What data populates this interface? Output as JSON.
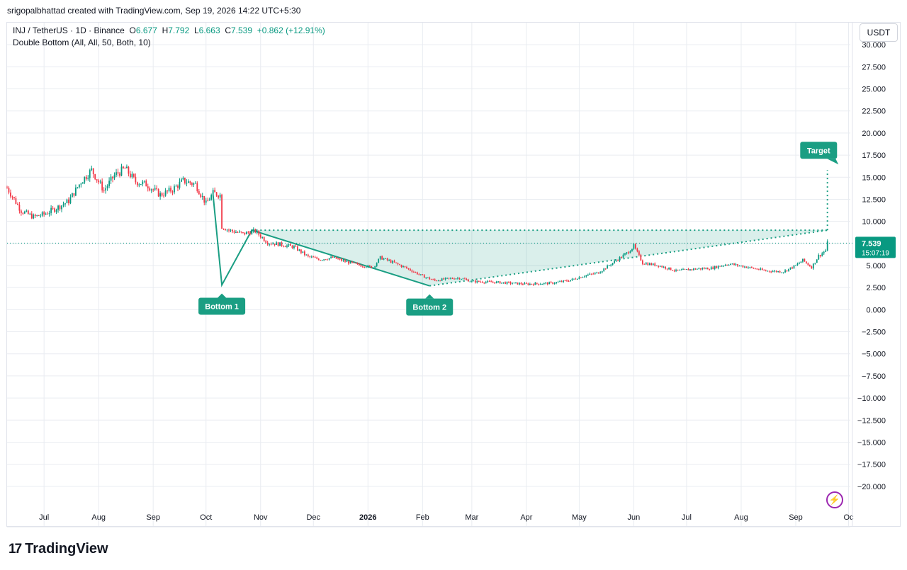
{
  "header": {
    "credit": "srigopalbhattad created with TradingView.com, Sep 19, 2026 14:22 UTC+5:30"
  },
  "legend": {
    "symbol": "INJ / TetherUS · 1D · Binance",
    "o_label": "O",
    "o_value": "6.677",
    "h_label": "H",
    "h_value": "7.792",
    "l_label": "L",
    "l_value": "6.663",
    "c_label": "C",
    "c_value": "7.539",
    "change": "+0.862 (+12.91%)",
    "indicator": "Double Bottom (All, All, 50, Both, 10)"
  },
  "currency_button": "USDT",
  "price_badge": {
    "price": "7.539",
    "countdown": "15:07:19"
  },
  "footer": {
    "brand": "TradingView"
  },
  "colors": {
    "up": "#089981",
    "down": "#f23645",
    "pattern": "#1a9e83",
    "grid": "#e9ecf1",
    "accent": "#9c27b0"
  },
  "chart_data": {
    "type": "candlestick",
    "title": "INJ / TetherUS · 1D · Binance",
    "ylim": [
      -22.5,
      32.5
    ],
    "yticks": [
      "30.000",
      "27.500",
      "25.000",
      "22.500",
      "20.000",
      "17.500",
      "15.000",
      "12.500",
      "10.000",
      "7.500",
      "5.000",
      "2.500",
      "0.000",
      "−2.500",
      "−5.000",
      "−7.500",
      "−10.000",
      "−12.500",
      "−15.000",
      "−17.500",
      "−20.000"
    ],
    "x_tick_labels": [
      "Jul",
      "Aug",
      "Sep",
      "Oct",
      "Nov",
      "Dec",
      "2026",
      "Feb",
      "Mar",
      "Apr",
      "May",
      "Jun",
      "Jul",
      "Aug",
      "Sep",
      "Oc"
    ],
    "x_tick_dates": [
      "2025-07-01",
      "2025-08-01",
      "2025-09-01",
      "2025-10-01",
      "2025-11-01",
      "2025-12-01",
      "2026-01-01",
      "2026-02-01",
      "2026-03-01",
      "2026-04-01",
      "2026-05-01",
      "2026-06-01",
      "2026-07-01",
      "2026-08-01",
      "2026-09-01",
      "2026-10-01"
    ],
    "x_range": [
      "2025-06-10",
      "2026-10-02"
    ],
    "last_close": 7.539,
    "close_path": [
      [
        "2025-06-10",
        13.8
      ],
      [
        "2025-06-18",
        11.2
      ],
      [
        "2025-06-25",
        10.5
      ],
      [
        "2025-07-01",
        10.8
      ],
      [
        "2025-07-08",
        11.5
      ],
      [
        "2025-07-15",
        12.3
      ],
      [
        "2025-07-22",
        14.5
      ],
      [
        "2025-07-28",
        15.8
      ],
      [
        "2025-08-04",
        13.5
      ],
      [
        "2025-08-10",
        15.2
      ],
      [
        "2025-08-16",
        16.0
      ],
      [
        "2025-08-22",
        14.5
      ],
      [
        "2025-08-28",
        14.2
      ],
      [
        "2025-09-05",
        13.0
      ],
      [
        "2025-09-12",
        13.6
      ],
      [
        "2025-09-18",
        14.6
      ],
      [
        "2025-09-25",
        14.2
      ],
      [
        "2025-10-01",
        12.0
      ],
      [
        "2025-10-05",
        13.2
      ],
      [
        "2025-10-09",
        13.0
      ],
      [
        "2025-10-10",
        9.4
      ],
      [
        "2025-10-14",
        9.0
      ],
      [
        "2025-10-22",
        8.6
      ],
      [
        "2025-10-29",
        8.9
      ],
      [
        "2025-11-05",
        7.6
      ],
      [
        "2025-11-12",
        7.4
      ],
      [
        "2025-11-20",
        7.1
      ],
      [
        "2025-11-28",
        6.0
      ],
      [
        "2025-12-05",
        5.7
      ],
      [
        "2025-12-12",
        5.9
      ],
      [
        "2025-12-20",
        5.4
      ],
      [
        "2025-12-28",
        5.0
      ],
      [
        "2026-01-04",
        4.8
      ],
      [
        "2026-01-08",
        5.9
      ],
      [
        "2026-01-16",
        5.3
      ],
      [
        "2026-01-24",
        4.6
      ],
      [
        "2026-02-01",
        3.8
      ],
      [
        "2026-02-08",
        3.3
      ],
      [
        "2026-02-15",
        3.5
      ],
      [
        "2026-02-22",
        3.6
      ],
      [
        "2026-03-01",
        3.2
      ],
      [
        "2026-03-15",
        3.1
      ],
      [
        "2026-04-01",
        2.9
      ],
      [
        "2026-04-15",
        3.0
      ],
      [
        "2026-04-25",
        3.3
      ],
      [
        "2026-05-05",
        3.9
      ],
      [
        "2026-05-12",
        4.2
      ],
      [
        "2026-05-20",
        5.3
      ],
      [
        "2026-05-28",
        6.4
      ],
      [
        "2026-06-01",
        7.2
      ],
      [
        "2026-06-06",
        5.3
      ],
      [
        "2026-06-15",
        5.0
      ],
      [
        "2026-06-25",
        4.4
      ],
      [
        "2026-07-05",
        4.6
      ],
      [
        "2026-07-15",
        4.7
      ],
      [
        "2026-07-25",
        5.2
      ],
      [
        "2026-08-05",
        4.8
      ],
      [
        "2026-08-15",
        4.4
      ],
      [
        "2026-08-25",
        4.3
      ],
      [
        "2026-09-01",
        5.0
      ],
      [
        "2026-09-05",
        5.6
      ],
      [
        "2026-09-10",
        4.8
      ],
      [
        "2026-09-14",
        6.1
      ],
      [
        "2026-09-18",
        6.7
      ],
      [
        "2026-09-19",
        7.539
      ]
    ],
    "pattern": {
      "name": "Double Bottom",
      "zigzag": [
        [
          "2025-10-05",
          13.0
        ],
        [
          "2025-10-10",
          2.8
        ],
        [
          "2025-10-27",
          9.0
        ],
        [
          "2026-02-05",
          2.7
        ]
      ],
      "projection": [
        [
          "2026-02-05",
          2.7
        ],
        [
          "2026-09-19",
          9.0
        ]
      ],
      "neckline": {
        "price": 9.0,
        "from": "2025-10-27",
        "to": "2026-09-19"
      },
      "target": {
        "price": 15.8,
        "date": "2026-09-21"
      },
      "labels": [
        {
          "text": "Bottom 1",
          "date": "2025-10-10",
          "price": 2.8
        },
        {
          "text": "Bottom 2",
          "date": "2026-02-05",
          "price": 2.7
        },
        {
          "text": "Target",
          "date": "2026-09-14",
          "price": 15.8
        }
      ]
    }
  }
}
